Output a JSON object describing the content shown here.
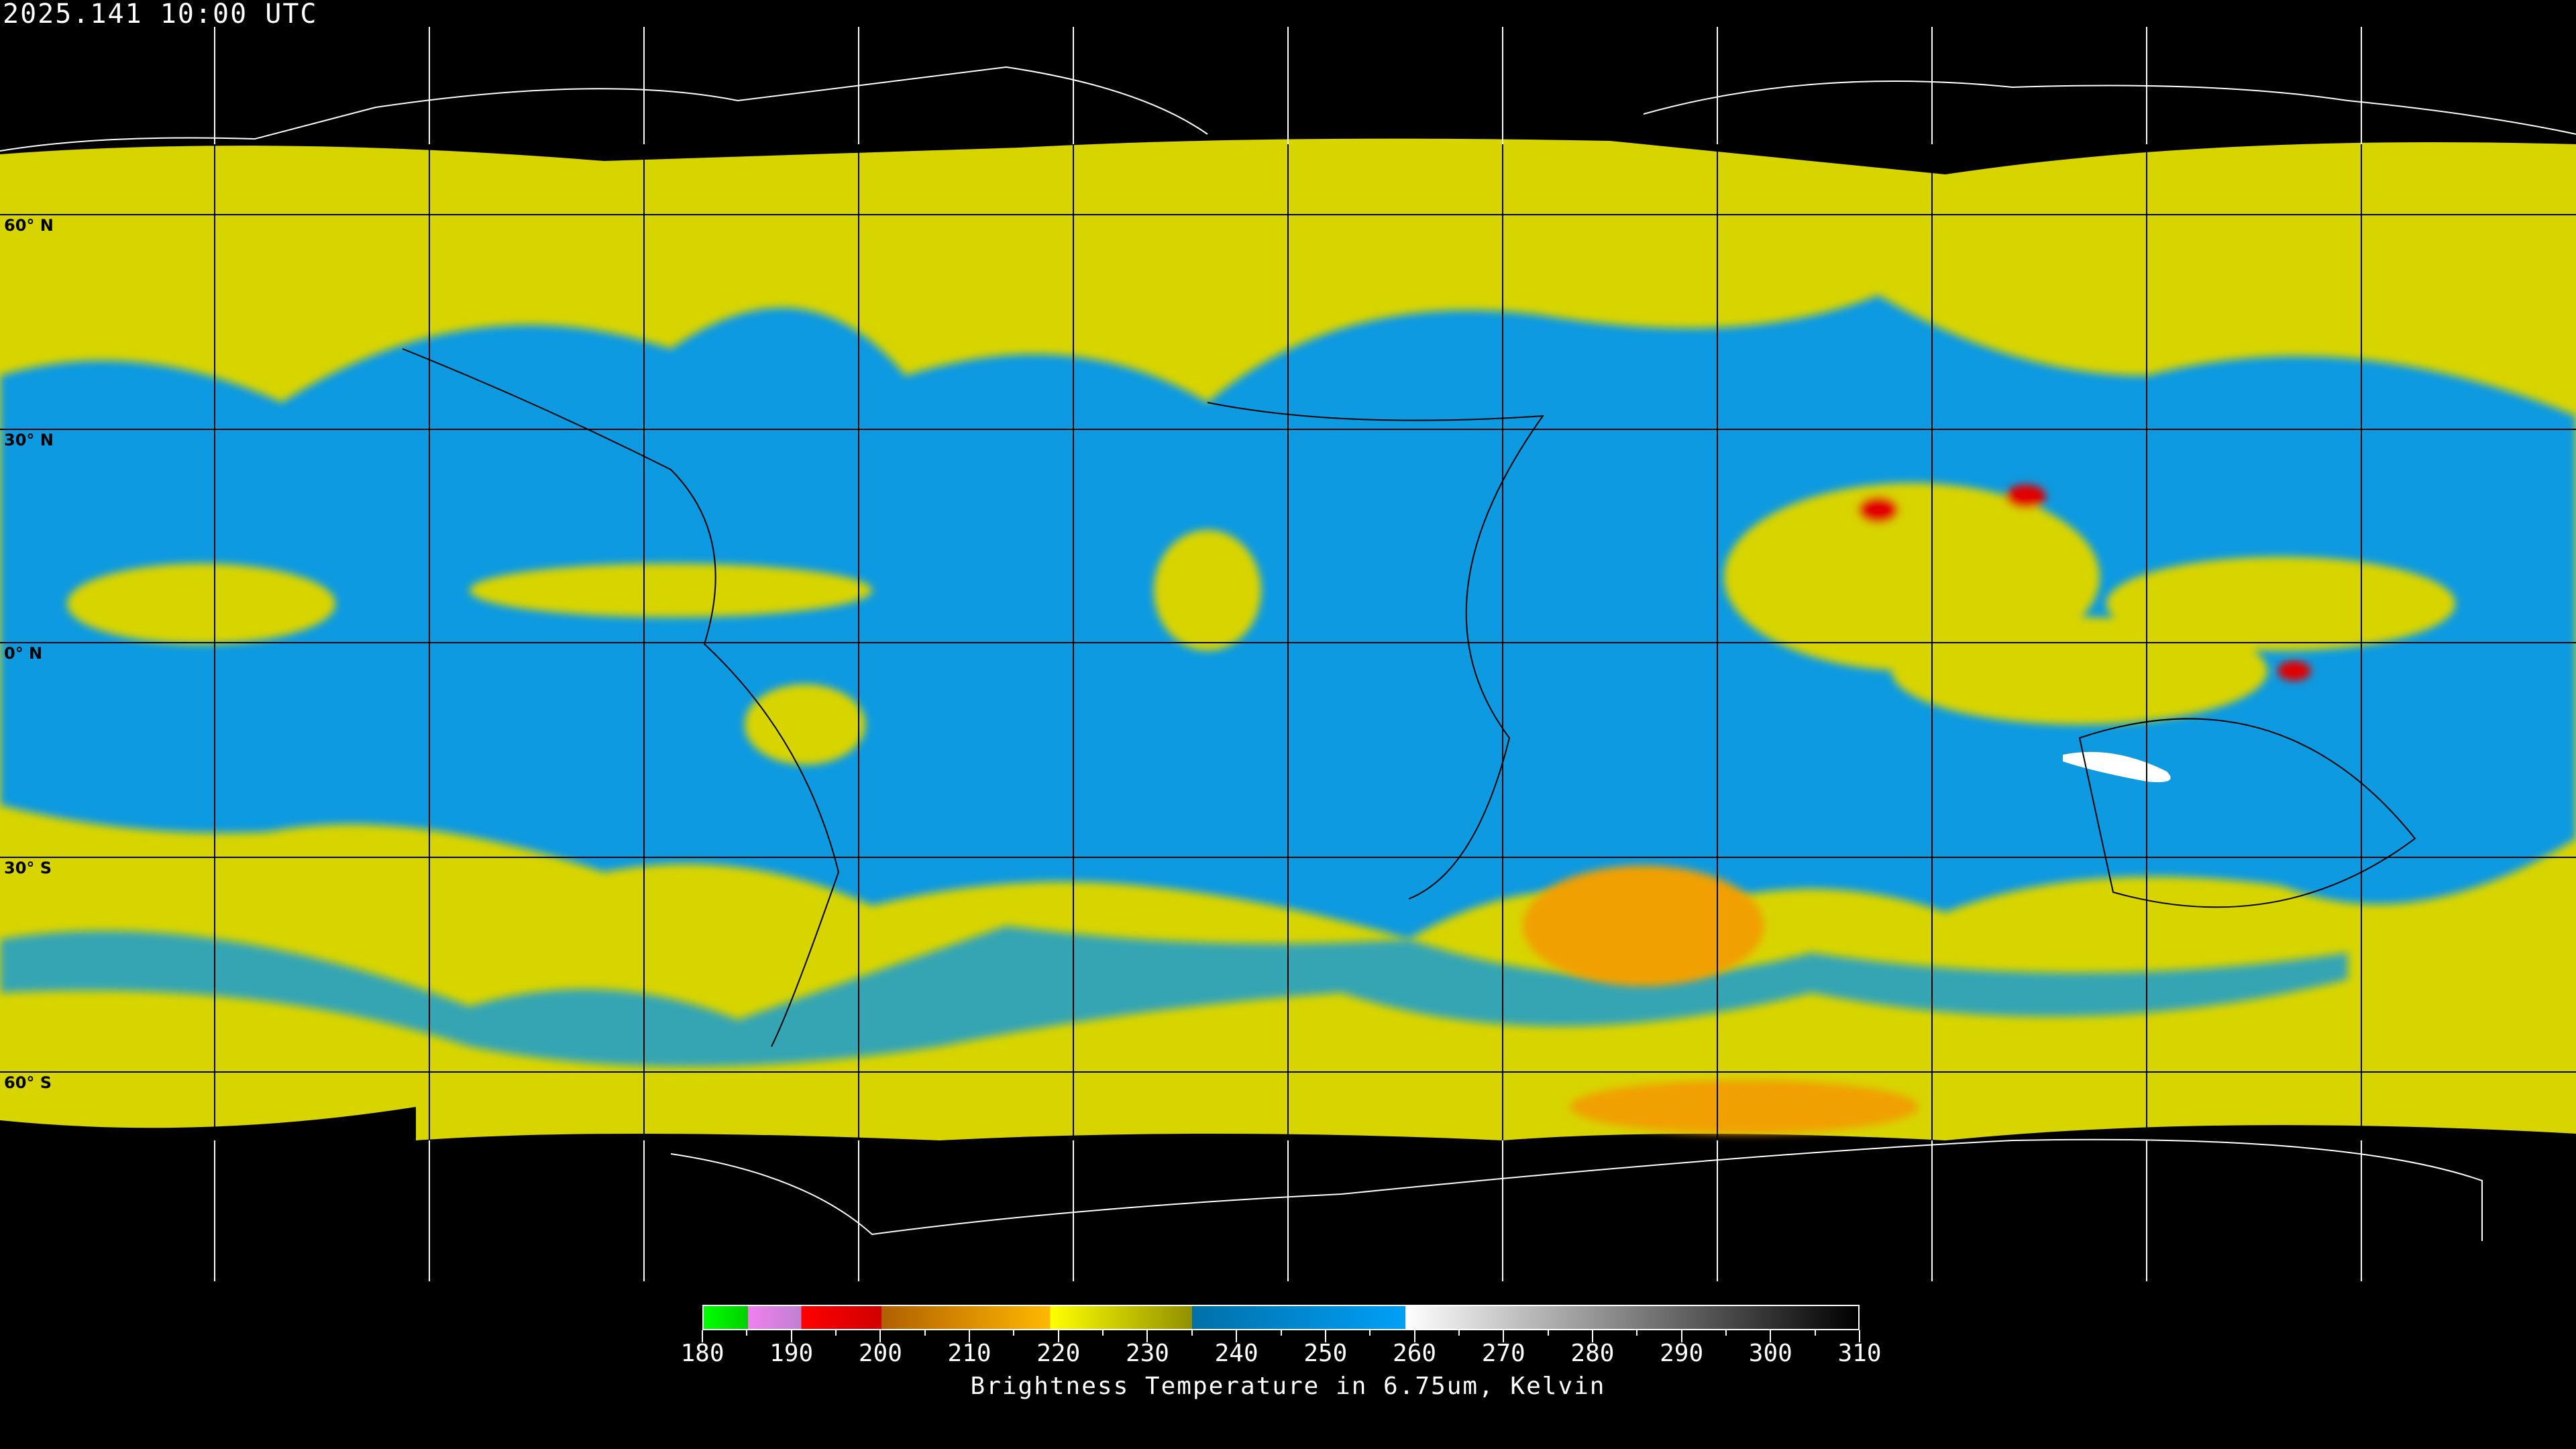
{
  "header": {
    "timestamp": "2025.141 10:00 UTC"
  },
  "map": {
    "projection": "equirectangular",
    "latitude_labels": [
      "60° N",
      "30° N",
      "0° N",
      "30° S",
      "60° S"
    ],
    "colors": {
      "background": "#000000",
      "moist": "#0a9ae0",
      "cloud": "#d8d400",
      "cold_cloud": "#f0a000",
      "deep_convection": "#e00000",
      "gridline": "#000000",
      "coastline": "#000000"
    }
  },
  "colorbar": {
    "title": "Brightness Temperature in 6.75um, Kelvin",
    "min": 180,
    "max": 310,
    "tick_labels": [
      "180",
      "190",
      "200",
      "210",
      "220",
      "230",
      "240",
      "250",
      "260",
      "270",
      "280",
      "290",
      "300",
      "310"
    ],
    "segments": [
      {
        "from": 180,
        "to": 185,
        "colors": [
          "#00ff00",
          "#00d000"
        ]
      },
      {
        "from": 185,
        "to": 191,
        "colors": [
          "#f080f0",
          "#c080d0"
        ]
      },
      {
        "from": 191,
        "to": 200,
        "colors": [
          "#ff0000",
          "#d00000"
        ]
      },
      {
        "from": 200,
        "to": 219,
        "colors": [
          "#b06000",
          "#ffb800"
        ]
      },
      {
        "from": 219,
        "to": 235,
        "colors": [
          "#ffff00",
          "#909000"
        ]
      },
      {
        "from": 235,
        "to": 259,
        "colors": [
          "#0070a8",
          "#00a0f8"
        ]
      },
      {
        "from": 259,
        "to": 310,
        "colors": [
          "#ffffff",
          "#000000"
        ]
      }
    ]
  }
}
